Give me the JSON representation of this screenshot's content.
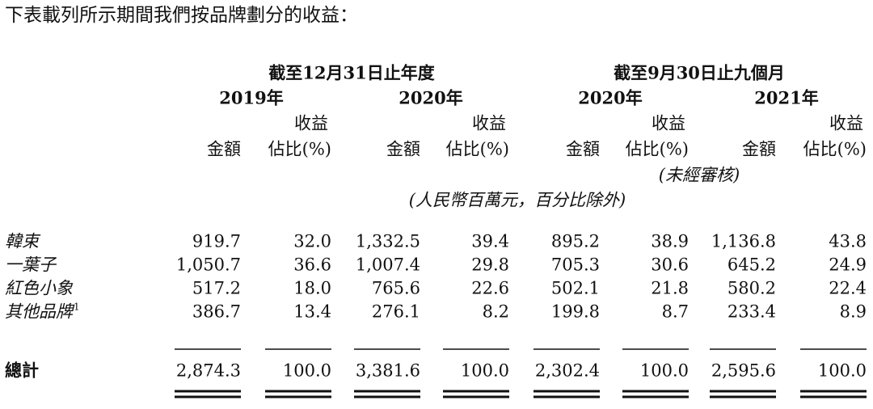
{
  "title": "下表載列所示期間我們按品牌劃分的收益：",
  "groups": [
    {
      "label": "截至12月31日止年度"
    },
    {
      "label": "截至9月30日止九個月",
      "note": "(未經審核)"
    }
  ],
  "columns": [
    {
      "year": "2019年",
      "top": "收益",
      "amount": "金額",
      "share": "佔比(%)"
    },
    {
      "year": "2020年",
      "top": "收益",
      "amount": "金額",
      "share": "佔比(%)"
    },
    {
      "year": "2020年",
      "top": "收益",
      "amount": "金額",
      "share": "佔比(%)"
    },
    {
      "year": "2021年",
      "top": "收益",
      "amount": "金額",
      "share": "佔比(%)"
    }
  ],
  "unit": "(人民幣百萬元，百分比除外)",
  "table": {
    "rows": [
      {
        "label": "韓束",
        "cells": [
          "919.7",
          "32.0",
          "1,332.5",
          "39.4",
          "895.2",
          "38.9",
          "1,136.8",
          "43.8"
        ]
      },
      {
        "label": "一葉子",
        "cells": [
          "1,050.7",
          "36.6",
          "1,007.4",
          "29.8",
          "705.3",
          "30.6",
          "645.2",
          "24.9"
        ]
      },
      {
        "label": "紅色小象",
        "cells": [
          "517.2",
          "18.0",
          "765.6",
          "22.6",
          "502.1",
          "21.8",
          "580.2",
          "22.4"
        ]
      },
      {
        "label": "其他品牌",
        "footnote": "1",
        "cells": [
          "386.7",
          "13.4",
          "276.1",
          "8.2",
          "199.8",
          "8.7",
          "233.4",
          "8.9"
        ]
      }
    ],
    "total": {
      "label": "總計",
      "cells": [
        "2,874.3",
        "100.0",
        "3,381.6",
        "100.0",
        "2,302.4",
        "100.0",
        "2,595.6",
        "100.0"
      ]
    }
  }
}
